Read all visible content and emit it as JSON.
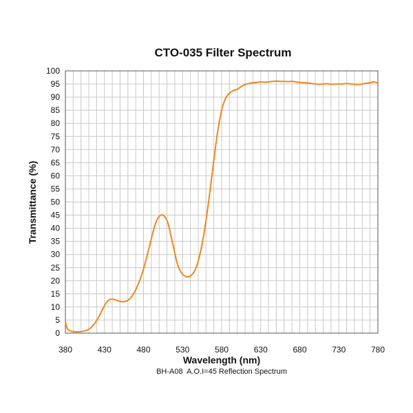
{
  "chart_data": {
    "type": "line",
    "title": "CTO-035 Filter Spectrum",
    "xlabel": "Wavelength (nm)",
    "ylabel": "Transmittance (%)",
    "subtitle": "BH-A08  A.O.I=45 Reflection Spectrum",
    "xlim": [
      380,
      780
    ],
    "ylim": [
      0,
      100
    ],
    "x_ticks": [
      380,
      430,
      480,
      530,
      580,
      630,
      680,
      730,
      780
    ],
    "y_ticks": [
      0,
      5,
      10,
      15,
      20,
      25,
      30,
      35,
      40,
      45,
      50,
      55,
      60,
      65,
      70,
      75,
      80,
      85,
      90,
      95,
      100
    ],
    "grid": true,
    "line_color": "#f0861a",
    "series": [
      {
        "x": [
          380,
          382,
          385,
          390,
          395,
          400,
          405,
          410,
          415,
          420,
          425,
          430,
          435,
          440,
          445,
          450,
          455,
          460,
          465,
          470,
          475,
          480,
          485,
          490,
          495,
          500,
          505,
          510,
          513,
          516,
          519,
          522,
          525,
          530,
          535,
          540,
          545,
          550,
          555,
          560,
          565,
          570,
          575,
          580,
          585,
          590,
          595,
          600,
          605,
          610,
          615,
          620,
          625,
          630,
          635,
          640,
          645,
          650,
          655,
          660,
          665,
          670,
          675,
          680,
          685,
          690,
          695,
          700,
          705,
          710,
          715,
          720,
          725,
          730,
          735,
          740,
          745,
          750,
          755,
          760,
          765,
          770,
          775,
          780
        ],
        "values": [
          4.5,
          2.0,
          1.0,
          0.6,
          0.5,
          0.6,
          0.9,
          1.5,
          2.8,
          4.8,
          7.5,
          10.5,
          12.5,
          13.0,
          12.6,
          12.1,
          12.0,
          12.5,
          14.0,
          16.5,
          20.0,
          24.5,
          30.0,
          36.0,
          41.5,
          44.5,
          45.0,
          43.0,
          40.0,
          36.0,
          32.0,
          28.0,
          25.0,
          22.5,
          21.5,
          21.8,
          23.5,
          27.5,
          34.0,
          43.0,
          54.0,
          66.0,
          77.0,
          85.0,
          89.5,
          91.5,
          92.5,
          93.0,
          94.0,
          94.8,
          95.2,
          95.5,
          95.6,
          95.8,
          95.7,
          95.8,
          96.0,
          96.1,
          96.0,
          96.0,
          95.9,
          96.0,
          95.8,
          95.6,
          95.5,
          95.4,
          95.2,
          95.0,
          94.9,
          95.0,
          95.1,
          94.9,
          94.9,
          95.0,
          95.0,
          95.2,
          95.0,
          94.9,
          94.8,
          95.0,
          95.3,
          95.5,
          95.8,
          95.4
        ]
      }
    ]
  }
}
